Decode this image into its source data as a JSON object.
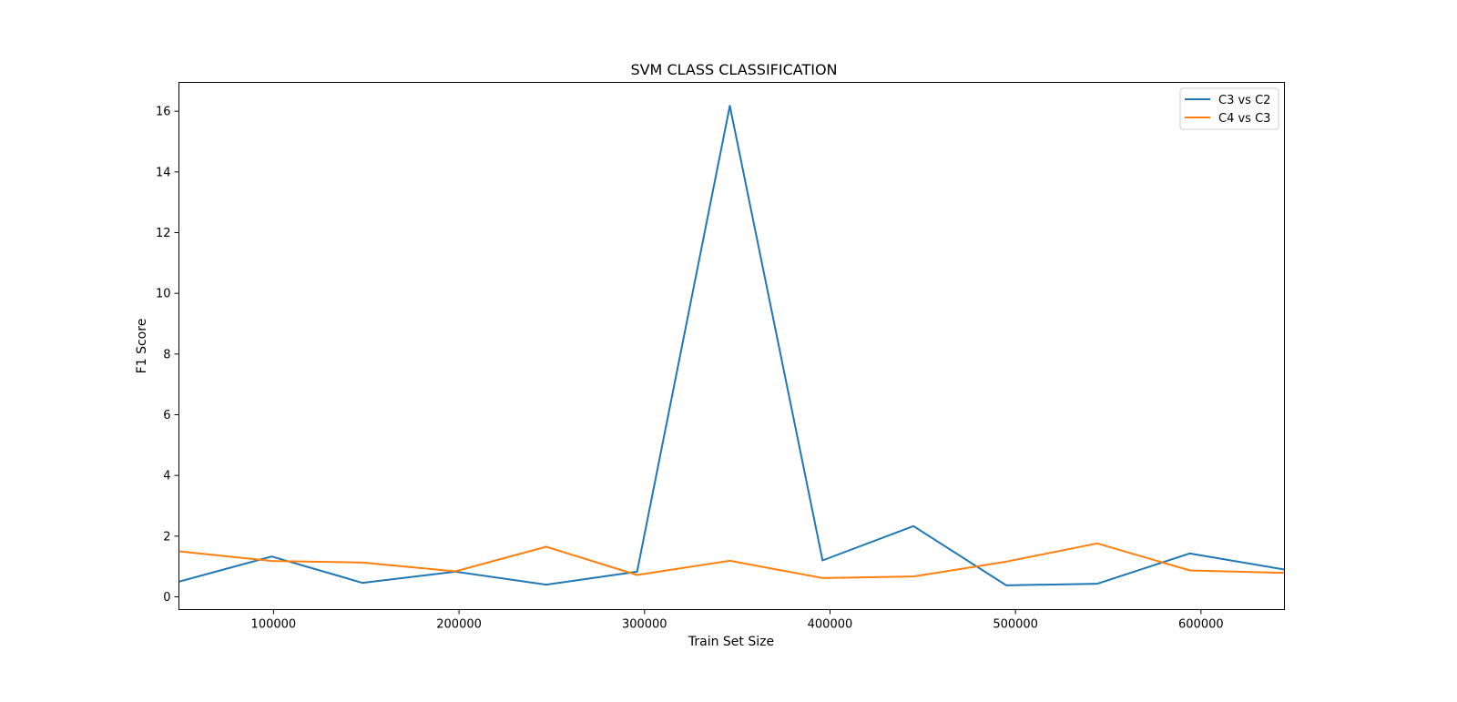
{
  "chart_data": {
    "type": "line",
    "title": "SVM CLASS CLASSIFICATION",
    "xlabel": "Train Set Size",
    "ylabel": "F1 Score",
    "xlim": [
      49000,
      645000
    ],
    "ylim": [
      -0.42,
      16.95
    ],
    "xticks": [
      100000,
      200000,
      300000,
      400000,
      500000,
      600000
    ],
    "xtick_labels": [
      "100000",
      "200000",
      "300000",
      "400000",
      "500000",
      "600000"
    ],
    "yticks": [
      0,
      2,
      4,
      6,
      8,
      10,
      12,
      14,
      16
    ],
    "ytick_labels": [
      "0",
      "2",
      "4",
      "6",
      "8",
      "10",
      "12",
      "14",
      "16"
    ],
    "grid": false,
    "legend_position": "upper right",
    "series": [
      {
        "name": "C3 vs C2",
        "color": "#1f77b4",
        "x": [
          49000,
          99000,
          148000,
          198000,
          247000,
          296000,
          346000,
          396000,
          445000,
          495000,
          544000,
          594000,
          645000
        ],
        "y": [
          0.5,
          1.33,
          0.46,
          0.83,
          0.4,
          0.83,
          16.18,
          1.2,
          2.33,
          0.38,
          0.43,
          1.43,
          0.9
        ]
      },
      {
        "name": "C4 vs C3",
        "color": "#ff7f0e",
        "x": [
          49000,
          99000,
          148000,
          198000,
          247000,
          296000,
          346000,
          396000,
          445000,
          495000,
          544000,
          594000,
          645000
        ],
        "y": [
          1.5,
          1.18,
          1.13,
          0.84,
          1.65,
          0.72,
          1.19,
          0.62,
          0.67,
          1.16,
          1.76,
          0.87,
          0.79
        ]
      }
    ]
  }
}
